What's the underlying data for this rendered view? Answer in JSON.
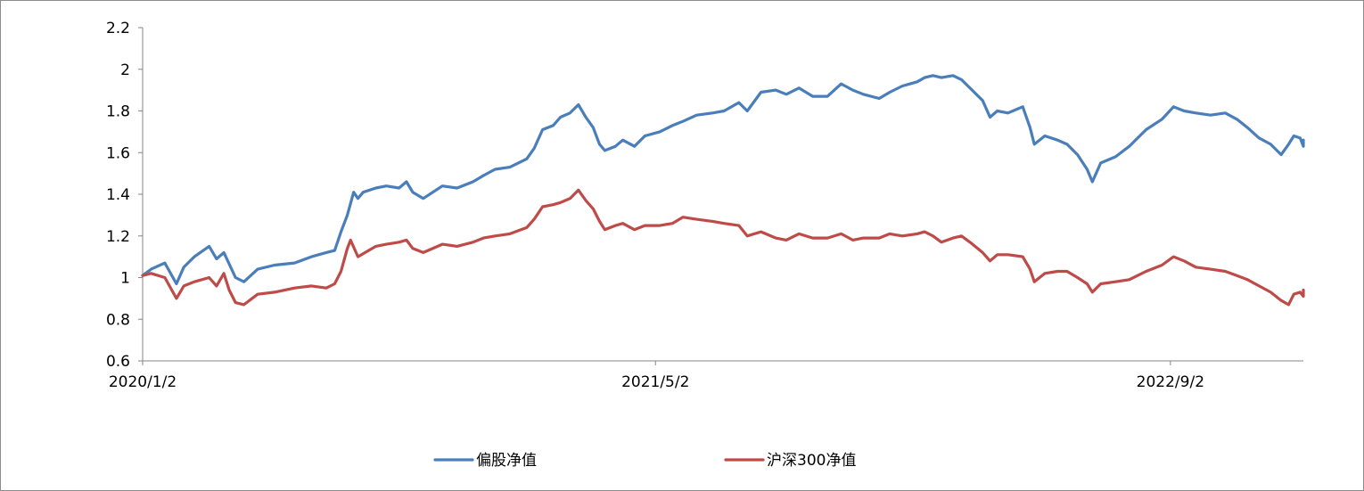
{
  "chart_data": {
    "type": "line",
    "title": "",
    "xlabel": "",
    "ylabel": "",
    "ylim": [
      0.6,
      2.2
    ],
    "yticks": [
      "0.6",
      "0.8",
      "1",
      "1.2",
      "1.4",
      "1.6",
      "1.8",
      "2",
      "2.2"
    ],
    "xlim": [
      "2020/1/2",
      "2023/1/6"
    ],
    "xticks": [
      "2020/1/2",
      "2021/5/2",
      "2022/9/2"
    ],
    "grid": false,
    "legend_position": "bottom",
    "series": [
      {
        "name": "偏股净值",
        "color": "#4a7ebb",
        "points": [
          [
            "2020/1/2",
            1.01
          ],
          [
            "2020/1/10",
            1.04
          ],
          [
            "2020/1/23",
            1.07
          ],
          [
            "2020/2/3",
            0.97
          ],
          [
            "2020/2/10",
            1.05
          ],
          [
            "2020/2/20",
            1.1
          ],
          [
            "2020/3/5",
            1.15
          ],
          [
            "2020/3/12",
            1.09
          ],
          [
            "2020/3/19",
            1.12
          ],
          [
            "2020/3/30",
            1.0
          ],
          [
            "2020/4/7",
            0.98
          ],
          [
            "2020/4/20",
            1.04
          ],
          [
            "2020/5/6",
            1.06
          ],
          [
            "2020/5/25",
            1.07
          ],
          [
            "2020/6/10",
            1.1
          ],
          [
            "2020/6/24",
            1.12
          ],
          [
            "2020/7/2",
            1.13
          ],
          [
            "2020/7/8",
            1.22
          ],
          [
            "2020/7/14",
            1.3
          ],
          [
            "2020/7/20",
            1.41
          ],
          [
            "2020/7/24",
            1.38
          ],
          [
            "2020/7/29",
            1.41
          ],
          [
            "2020/8/10",
            1.43
          ],
          [
            "2020/8/20",
            1.44
          ],
          [
            "2020/9/1",
            1.43
          ],
          [
            "2020/9/8",
            1.46
          ],
          [
            "2020/9/14",
            1.41
          ],
          [
            "2020/9/24",
            1.38
          ],
          [
            "2020/10/12",
            1.44
          ],
          [
            "2020/10/26",
            1.43
          ],
          [
            "2020/11/10",
            1.46
          ],
          [
            "2020/11/20",
            1.49
          ],
          [
            "2020/12/1",
            1.52
          ],
          [
            "2020/12/15",
            1.53
          ],
          [
            "2020/12/31",
            1.57
          ],
          [
            "2021/1/7",
            1.62
          ],
          [
            "2021/1/15",
            1.71
          ],
          [
            "2021/1/25",
            1.73
          ],
          [
            "2021/2/1",
            1.77
          ],
          [
            "2021/2/10",
            1.79
          ],
          [
            "2021/2/18",
            1.83
          ],
          [
            "2021/2/25",
            1.77
          ],
          [
            "2021/3/4",
            1.72
          ],
          [
            "2021/3/10",
            1.64
          ],
          [
            "2021/3/15",
            1.61
          ],
          [
            "2021/3/25",
            1.63
          ],
          [
            "2021/4/1",
            1.66
          ],
          [
            "2021/4/12",
            1.63
          ],
          [
            "2021/4/22",
            1.68
          ],
          [
            "2021/5/6",
            1.7
          ],
          [
            "2021/5/18",
            1.73
          ],
          [
            "2021/5/28",
            1.75
          ],
          [
            "2021/6/10",
            1.78
          ],
          [
            "2021/6/25",
            1.79
          ],
          [
            "2021/7/6",
            1.8
          ],
          [
            "2021/7/20",
            1.84
          ],
          [
            "2021/7/28",
            1.8
          ],
          [
            "2021/8/10",
            1.89
          ],
          [
            "2021/8/24",
            1.9
          ],
          [
            "2021/9/3",
            1.88
          ],
          [
            "2021/9/15",
            1.91
          ],
          [
            "2021/9/28",
            1.87
          ],
          [
            "2021/10/12",
            1.87
          ],
          [
            "2021/10/25",
            1.93
          ],
          [
            "2021/11/5",
            1.9
          ],
          [
            "2021/11/15",
            1.88
          ],
          [
            "2021/11/30",
            1.86
          ],
          [
            "2021/12/10",
            1.89
          ],
          [
            "2021/12/22",
            1.92
          ],
          [
            "2022/1/5",
            1.94
          ],
          [
            "2022/1/12",
            1.96
          ],
          [
            "2022/1/20",
            1.97
          ],
          [
            "2022/1/28",
            1.96
          ],
          [
            "2022/2/8",
            1.97
          ],
          [
            "2022/2/16",
            1.95
          ],
          [
            "2022/2/24",
            1.91
          ],
          [
            "2022/3/8",
            1.85
          ],
          [
            "2022/3/15",
            1.77
          ],
          [
            "2022/3/22",
            1.8
          ],
          [
            "2022/4/1",
            1.79
          ],
          [
            "2022/4/15",
            1.82
          ],
          [
            "2022/4/22",
            1.72
          ],
          [
            "2022/4/26",
            1.64
          ],
          [
            "2022/5/6",
            1.68
          ],
          [
            "2022/5/18",
            1.66
          ],
          [
            "2022/5/27",
            1.64
          ],
          [
            "2022/6/6",
            1.59
          ],
          [
            "2022/6/15",
            1.52
          ],
          [
            "2022/6/20",
            1.46
          ],
          [
            "2022/6/28",
            1.55
          ],
          [
            "2022/7/12",
            1.58
          ],
          [
            "2022/7/25",
            1.63
          ],
          [
            "2022/8/10",
            1.71
          ],
          [
            "2022/8/25",
            1.76
          ],
          [
            "2022/9/5",
            1.82
          ],
          [
            "2022/9/15",
            1.8
          ],
          [
            "2022/9/26",
            1.79
          ],
          [
            "2022/10/10",
            1.78
          ],
          [
            "2022/10/24",
            1.79
          ],
          [
            "2022/11/4",
            1.76
          ],
          [
            "2022/11/14",
            1.72
          ],
          [
            "2022/11/25",
            1.67
          ],
          [
            "2022/12/6",
            1.64
          ],
          [
            "2022/12/16",
            1.59
          ],
          [
            "2022/12/23",
            1.64
          ],
          [
            "2022/12/28",
            1.68
          ],
          [
            "2023/1/3",
            1.67
          ],
          [
            "2023/1/6",
            1.63
          ],
          [
            "2023/1/6",
            1.66
          ]
        ]
      },
      {
        "name": "沪深300净值",
        "color": "#be4b48",
        "points": [
          [
            "2020/1/2",
            1.01
          ],
          [
            "2020/1/10",
            1.02
          ],
          [
            "2020/1/23",
            1.0
          ],
          [
            "2020/2/3",
            0.9
          ],
          [
            "2020/2/10",
            0.96
          ],
          [
            "2020/2/20",
            0.98
          ],
          [
            "2020/3/5",
            1.0
          ],
          [
            "2020/3/12",
            0.96
          ],
          [
            "2020/3/19",
            1.02
          ],
          [
            "2020/3/24",
            0.94
          ],
          [
            "2020/3/30",
            0.88
          ],
          [
            "2020/4/7",
            0.87
          ],
          [
            "2020/4/20",
            0.92
          ],
          [
            "2020/5/6",
            0.93
          ],
          [
            "2020/5/25",
            0.95
          ],
          [
            "2020/6/10",
            0.96
          ],
          [
            "2020/6/24",
            0.95
          ],
          [
            "2020/7/2",
            0.97
          ],
          [
            "2020/7/8",
            1.03
          ],
          [
            "2020/7/14",
            1.14
          ],
          [
            "2020/7/17",
            1.18
          ],
          [
            "2020/7/24",
            1.1
          ],
          [
            "2020/8/10",
            1.15
          ],
          [
            "2020/8/20",
            1.16
          ],
          [
            "2020/9/1",
            1.17
          ],
          [
            "2020/9/8",
            1.18
          ],
          [
            "2020/9/14",
            1.14
          ],
          [
            "2020/9/24",
            1.12
          ],
          [
            "2020/10/12",
            1.16
          ],
          [
            "2020/10/26",
            1.15
          ],
          [
            "2020/11/10",
            1.17
          ],
          [
            "2020/11/20",
            1.19
          ],
          [
            "2020/12/1",
            1.2
          ],
          [
            "2020/12/15",
            1.21
          ],
          [
            "2020/12/31",
            1.24
          ],
          [
            "2021/1/7",
            1.28
          ],
          [
            "2021/1/15",
            1.34
          ],
          [
            "2021/1/25",
            1.35
          ],
          [
            "2021/2/1",
            1.36
          ],
          [
            "2021/2/10",
            1.38
          ],
          [
            "2021/2/18",
            1.42
          ],
          [
            "2021/2/25",
            1.37
          ],
          [
            "2021/3/4",
            1.33
          ],
          [
            "2021/3/10",
            1.27
          ],
          [
            "2021/3/15",
            1.23
          ],
          [
            "2021/3/25",
            1.25
          ],
          [
            "2021/4/1",
            1.26
          ],
          [
            "2021/4/12",
            1.23
          ],
          [
            "2021/4/22",
            1.25
          ],
          [
            "2021/5/6",
            1.25
          ],
          [
            "2021/5/18",
            1.26
          ],
          [
            "2021/5/28",
            1.29
          ],
          [
            "2021/6/10",
            1.28
          ],
          [
            "2021/6/25",
            1.27
          ],
          [
            "2021/7/6",
            1.26
          ],
          [
            "2021/7/20",
            1.25
          ],
          [
            "2021/7/28",
            1.2
          ],
          [
            "2021/8/10",
            1.22
          ],
          [
            "2021/8/24",
            1.19
          ],
          [
            "2021/9/3",
            1.18
          ],
          [
            "2021/9/15",
            1.21
          ],
          [
            "2021/9/28",
            1.19
          ],
          [
            "2021/10/12",
            1.19
          ],
          [
            "2021/10/25",
            1.21
          ],
          [
            "2021/11/5",
            1.18
          ],
          [
            "2021/11/15",
            1.19
          ],
          [
            "2021/11/30",
            1.19
          ],
          [
            "2021/12/10",
            1.21
          ],
          [
            "2021/12/22",
            1.2
          ],
          [
            "2022/1/5",
            1.21
          ],
          [
            "2022/1/12",
            1.22
          ],
          [
            "2022/1/20",
            1.2
          ],
          [
            "2022/1/28",
            1.17
          ],
          [
            "2022/2/8",
            1.19
          ],
          [
            "2022/2/16",
            1.2
          ],
          [
            "2022/2/24",
            1.17
          ],
          [
            "2022/3/8",
            1.12
          ],
          [
            "2022/3/15",
            1.08
          ],
          [
            "2022/3/22",
            1.11
          ],
          [
            "2022/4/1",
            1.11
          ],
          [
            "2022/4/15",
            1.1
          ],
          [
            "2022/4/22",
            1.04
          ],
          [
            "2022/4/26",
            0.98
          ],
          [
            "2022/5/6",
            1.02
          ],
          [
            "2022/5/18",
            1.03
          ],
          [
            "2022/5/27",
            1.03
          ],
          [
            "2022/6/6",
            1.0
          ],
          [
            "2022/6/15",
            0.97
          ],
          [
            "2022/6/20",
            0.93
          ],
          [
            "2022/6/28",
            0.97
          ],
          [
            "2022/7/12",
            0.98
          ],
          [
            "2022/7/25",
            0.99
          ],
          [
            "2022/8/10",
            1.03
          ],
          [
            "2022/8/25",
            1.06
          ],
          [
            "2022/9/5",
            1.1
          ],
          [
            "2022/9/15",
            1.08
          ],
          [
            "2022/9/26",
            1.05
          ],
          [
            "2022/10/10",
            1.04
          ],
          [
            "2022/10/24",
            1.03
          ],
          [
            "2022/11/4",
            1.01
          ],
          [
            "2022/11/14",
            0.99
          ],
          [
            "2022/11/25",
            0.96
          ],
          [
            "2022/12/6",
            0.93
          ],
          [
            "2022/12/16",
            0.89
          ],
          [
            "2022/12/23",
            0.87
          ],
          [
            "2022/12/28",
            0.92
          ],
          [
            "2023/1/3",
            0.93
          ],
          [
            "2023/1/6",
            0.91
          ],
          [
            "2023/1/6",
            0.94
          ]
        ]
      }
    ]
  }
}
